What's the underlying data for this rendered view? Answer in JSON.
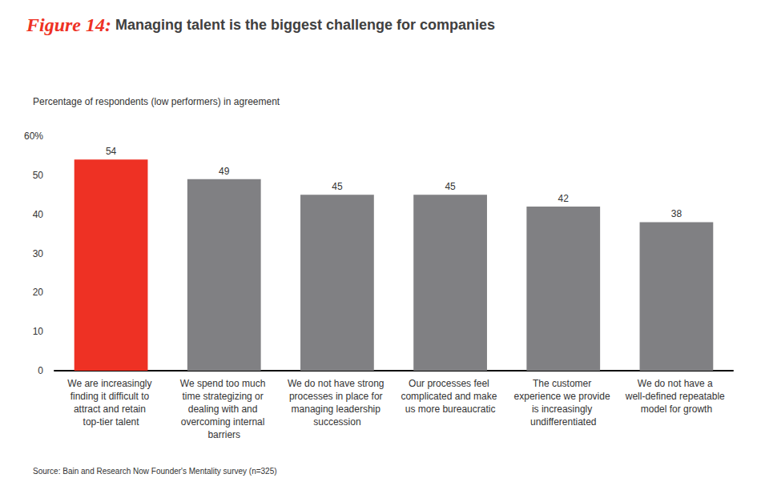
{
  "chart_data": {
    "type": "bar",
    "title": "Figure 14: Managing talent is the biggest challenge for companies",
    "subtitle": "Percentage of respondents (low performers) in agreement",
    "source": "Source: Bain and Research Now Founder's Mentality survey (n=325)",
    "categories": [
      "We are increasingly finding it difficult to attract and retain top-tier talent",
      "We spend too much time strategizing or dealing with and overcoming internal barriers",
      "We do not have strong processes in place for managing leadership succession",
      "Our processes feel complicated and make us more bureaucratic",
      "The customer experience we provide is increasingly undifferentiated",
      "We do not have a well-defined repeatable model for growth"
    ],
    "values": [
      54,
      49,
      45,
      45,
      42,
      38
    ],
    "colors": [
      "#ee3124",
      "#808083",
      "#808083",
      "#808083",
      "#808083",
      "#808083"
    ],
    "ylim": [
      0,
      60
    ],
    "yticks": [
      0,
      10,
      20,
      30,
      40,
      50,
      {
        "value": 60,
        "label": "60%"
      }
    ],
    "grid": false,
    "data_labels": true
  }
}
